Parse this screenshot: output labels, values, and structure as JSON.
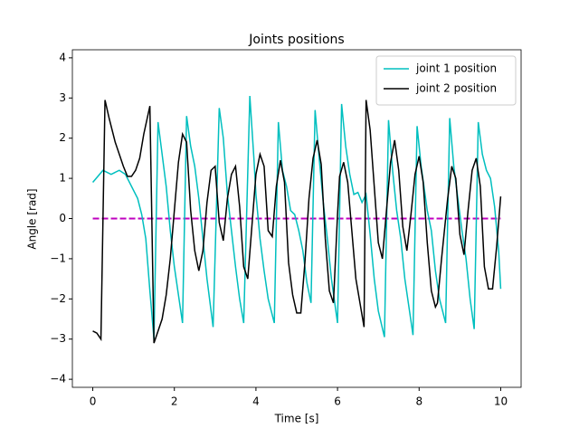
{
  "chart_data": {
    "type": "line",
    "title": "Joints positions",
    "x_label": "Time [s]",
    "y_label": "Angle [rad]",
    "xlim": [
      -0.5,
      10.5
    ],
    "ylim": [
      -4.2,
      4.2
    ],
    "xticks": [
      0,
      2,
      4,
      6,
      8,
      10
    ],
    "yticks": [
      {
        "value": -4,
        "label": "−4"
      },
      {
        "value": -3,
        "label": "−3"
      },
      {
        "value": -2,
        "label": "−2"
      },
      {
        "value": -1,
        "label": "−1"
      },
      0,
      1,
      2,
      3,
      4
    ],
    "legend": "upper right",
    "series": [
      {
        "name": "joint 1 position",
        "color": "#00bfbf",
        "x": [
          0,
          0.25,
          0.45,
          0.65,
          0.8,
          1.1,
          1.2,
          1.3,
          1.4,
          1.5,
          1.6,
          1.7,
          1.8,
          1.9,
          2.0,
          2.2,
          2.3,
          2.4,
          2.5,
          2.6,
          2.7,
          2.8,
          2.95,
          3.1,
          3.2,
          3.3,
          3.4,
          3.5,
          3.6,
          3.7,
          3.85,
          3.95,
          4.0,
          4.1,
          4.2,
          4.3,
          4.45,
          4.55,
          4.65,
          4.75,
          4.85,
          4.95,
          5.05,
          5.15,
          5.25,
          5.35,
          5.45,
          5.55,
          5.65,
          5.75,
          5.85,
          6.0,
          6.1,
          6.2,
          6.3,
          6.4,
          6.5,
          6.6,
          6.7,
          6.8,
          6.9,
          7.0,
          7.15,
          7.25,
          7.35,
          7.45,
          7.55,
          7.65,
          7.75,
          7.85,
          7.95,
          8.05,
          8.2,
          8.3,
          8.4,
          8.5,
          8.65,
          8.75,
          8.85,
          8.95,
          9.05,
          9.15,
          9.25,
          9.35,
          9.45,
          9.55,
          9.65,
          9.75,
          9.85,
          9.95,
          10.0
        ],
        "values": [
          0.9,
          1.2,
          1.1,
          1.2,
          1.1,
          0.5,
          0.1,
          -0.5,
          -1.8,
          -3.0,
          2.4,
          1.6,
          0.8,
          -0.3,
          -1.2,
          -2.6,
          2.55,
          1.8,
          1.3,
          0.5,
          -0.5,
          -1.5,
          -2.7,
          2.75,
          2.0,
          0.6,
          -0.3,
          -1.2,
          -2.0,
          -2.6,
          3.05,
          1.5,
          0.6,
          -0.5,
          -1.3,
          -2.0,
          -2.6,
          2.4,
          1.2,
          0.8,
          0.2,
          0.1,
          -0.3,
          -0.8,
          -1.6,
          -2.1,
          2.7,
          1.5,
          0.4,
          -0.5,
          -1.5,
          -2.6,
          2.85,
          1.8,
          1.1,
          0.6,
          0.65,
          0.4,
          0.6,
          -0.4,
          -1.5,
          -2.3,
          -2.95,
          2.45,
          1.2,
          0.2,
          -0.5,
          -1.5,
          -2.2,
          -2.9,
          2.3,
          1.3,
          0.2,
          -0.3,
          -1.3,
          -2.0,
          -2.6,
          2.5,
          1.3,
          0.5,
          -0.3,
          -1.0,
          -2.0,
          -2.75,
          2.4,
          1.6,
          1.2,
          1.0,
          0.3,
          -0.8,
          -1.75
        ]
      },
      {
        "name": "joint 2 position",
        "color": "#000000",
        "x": [
          0,
          0.1,
          0.2,
          0.3,
          0.4,
          0.55,
          0.75,
          0.85,
          0.95,
          1.05,
          1.15,
          1.25,
          1.4,
          1.5,
          1.6,
          1.7,
          1.8,
          1.9,
          2.0,
          2.1,
          2.2,
          2.3,
          2.4,
          2.5,
          2.6,
          2.7,
          2.8,
          2.9,
          3.0,
          3.1,
          3.2,
          3.3,
          3.4,
          3.5,
          3.6,
          3.7,
          3.8,
          3.9,
          4.0,
          4.1,
          4.2,
          4.3,
          4.4,
          4.5,
          4.6,
          4.7,
          4.8,
          4.9,
          5.0,
          5.1,
          5.2,
          5.3,
          5.4,
          5.5,
          5.6,
          5.7,
          5.8,
          5.9,
          6.0,
          6.05,
          6.15,
          6.25,
          6.35,
          6.45,
          6.55,
          6.65,
          6.7,
          6.8,
          6.9,
          7.0,
          7.1,
          7.2,
          7.3,
          7.4,
          7.5,
          7.6,
          7.7,
          7.8,
          7.9,
          8.0,
          8.1,
          8.2,
          8.3,
          8.4,
          8.45,
          8.55,
          8.7,
          8.8,
          8.9,
          9.0,
          9.1,
          9.2,
          9.3,
          9.4,
          9.5,
          9.6,
          9.7,
          9.8,
          9.9,
          10.0
        ],
        "values": [
          -2.8,
          -2.85,
          -3.0,
          2.95,
          2.5,
          1.9,
          1.3,
          1.05,
          1.05,
          1.2,
          1.5,
          2.1,
          2.8,
          -3.1,
          -2.8,
          -2.5,
          -1.9,
          -1.0,
          0.2,
          1.4,
          2.1,
          1.9,
          0.2,
          -0.8,
          -1.3,
          -0.8,
          0.4,
          1.2,
          1.3,
          -0.1,
          -0.55,
          0.5,
          1.1,
          1.3,
          0.3,
          -1.2,
          -1.5,
          -0.2,
          1.1,
          1.6,
          1.3,
          -0.3,
          -0.45,
          0.8,
          1.45,
          0.9,
          -1.1,
          -1.9,
          -2.35,
          -2.35,
          -1.1,
          0.5,
          1.5,
          1.95,
          1.35,
          -0.5,
          -1.8,
          -2.1,
          0.1,
          1.05,
          1.4,
          0.9,
          -0.3,
          -1.5,
          -2.1,
          -2.7,
          2.95,
          2.2,
          0.8,
          -0.6,
          -1.0,
          0.2,
          1.4,
          1.95,
          1.2,
          -0.2,
          -0.8,
          0.1,
          1.1,
          1.55,
          0.9,
          -0.6,
          -1.8,
          -2.2,
          -2.1,
          -1.0,
          0.5,
          1.3,
          1.0,
          -0.4,
          -0.9,
          0.2,
          1.2,
          1.5,
          0.8,
          -1.2,
          -1.75,
          -1.75,
          -0.7,
          0.55
        ]
      }
    ],
    "hline": {
      "value": 0,
      "xmin": 0,
      "xmax": 10,
      "color": "#bf00bf",
      "dashed": true
    }
  }
}
